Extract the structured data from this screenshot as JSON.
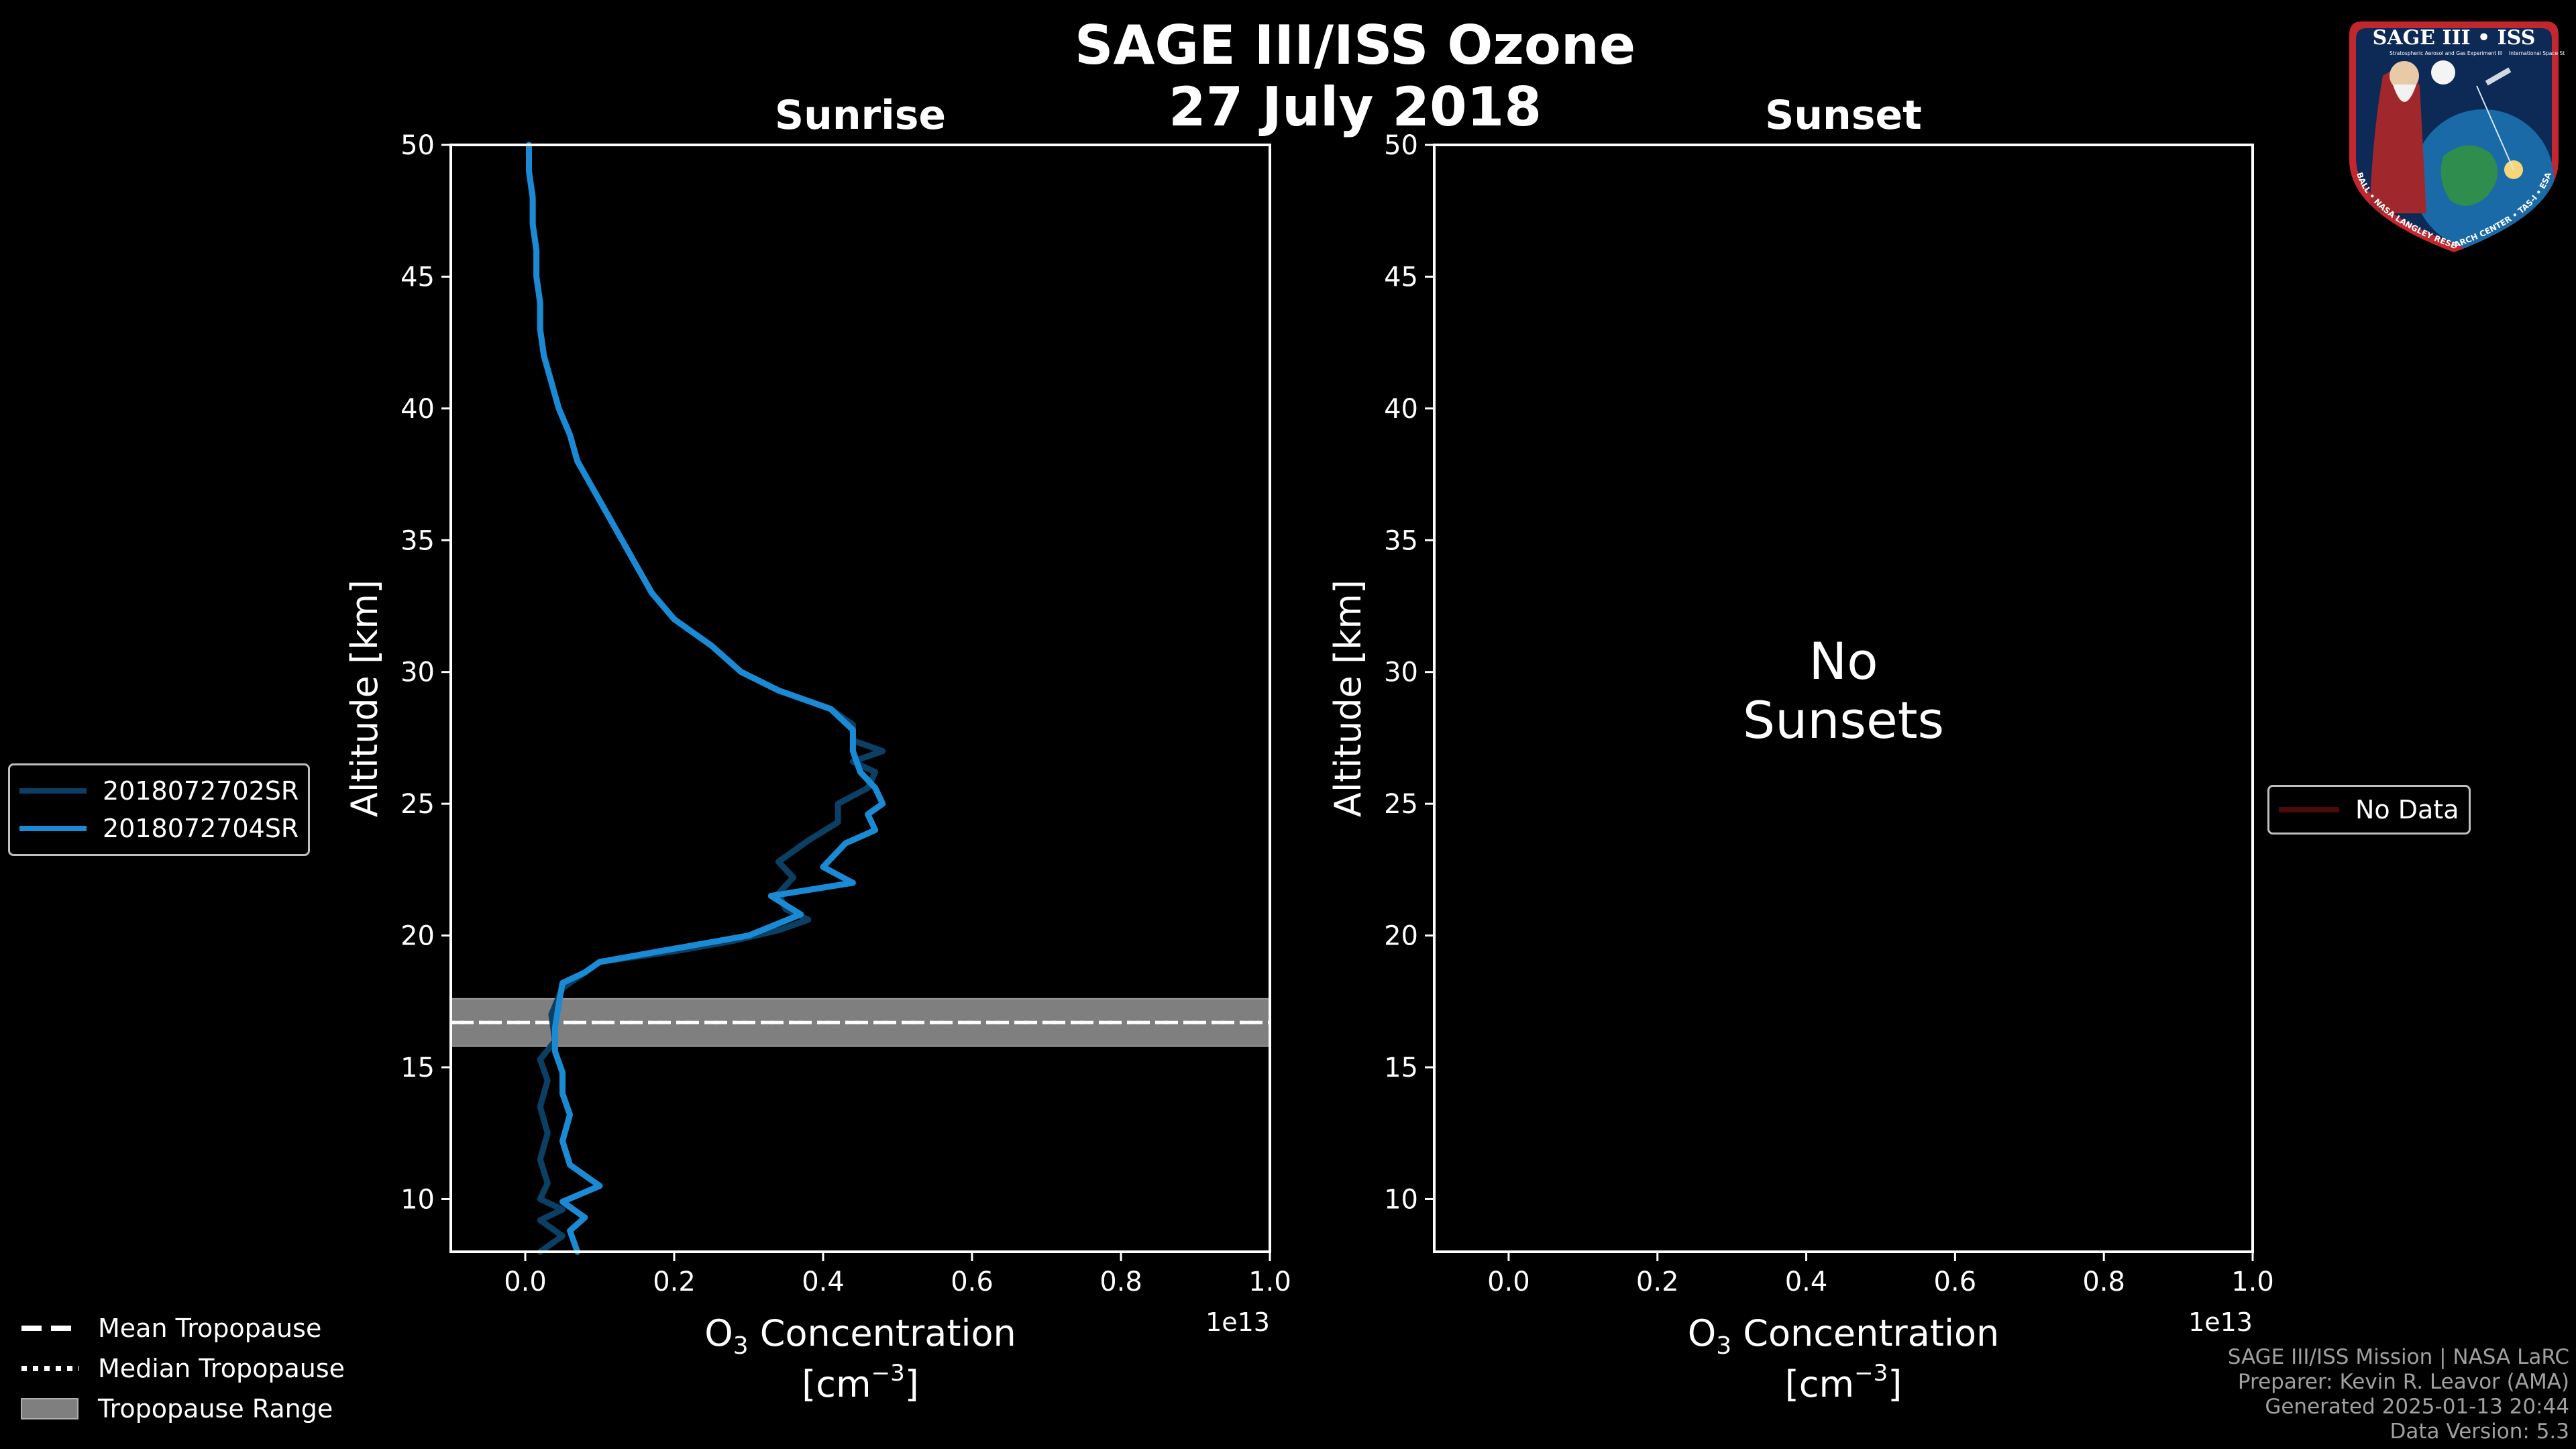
{
  "header": {
    "title_line1": "SAGE III/ISS Ozone",
    "title_line2": "27 July 2018"
  },
  "chart_data": [
    {
      "type": "line",
      "title": "Sunrise",
      "xlabel": "O3 Concentration [cm^-3]",
      "xlabel_main": "O",
      "xlabel_sub": "3",
      "xlabel_rest": " Concentration",
      "xlabel_unit_open": "[cm",
      "xlabel_unit_exp": "−3",
      "xlabel_unit_close": "]",
      "ylabel": "Altitude [km]",
      "x_scale_label": "1e13",
      "xlim": [
        -0.1,
        1.0
      ],
      "ylim": [
        8,
        50
      ],
      "xticks": [
        "0.0",
        "0.2",
        "0.4",
        "0.6",
        "0.8",
        "1.0"
      ],
      "xtick_values": [
        0.0,
        0.2,
        0.4,
        0.6,
        0.8,
        1.0
      ],
      "yticks": [
        "10",
        "15",
        "20",
        "25",
        "30",
        "35",
        "40",
        "45",
        "50"
      ],
      "ytick_values": [
        10,
        15,
        20,
        25,
        30,
        35,
        40,
        45,
        50
      ],
      "tropopause": {
        "mean": 16.7,
        "median": 16.7,
        "min": 15.8,
        "max": 17.6
      },
      "series": [
        {
          "name": "2018072702SR",
          "color": "#0b3f64",
          "points": [
            [
              0.02,
              8.0
            ],
            [
              0.05,
              8.6
            ],
            [
              0.02,
              9.2
            ],
            [
              0.05,
              9.6
            ],
            [
              0.02,
              10.0
            ],
            [
              0.03,
              10.6
            ],
            [
              0.02,
              11.5
            ],
            [
              0.03,
              12.5
            ],
            [
              0.02,
              13.5
            ],
            [
              0.03,
              14.5
            ],
            [
              0.02,
              15.3
            ],
            [
              0.04,
              16.0
            ],
            [
              0.035,
              17.0
            ],
            [
              0.05,
              18.0
            ],
            [
              0.1,
              19.0
            ],
            [
              0.2,
              19.4
            ],
            [
              0.28,
              19.8
            ],
            [
              0.34,
              20.2
            ],
            [
              0.38,
              20.6
            ],
            [
              0.35,
              21.0
            ],
            [
              0.34,
              21.6
            ],
            [
              0.36,
              22.2
            ],
            [
              0.34,
              22.8
            ],
            [
              0.38,
              23.6
            ],
            [
              0.42,
              24.3
            ],
            [
              0.42,
              25.0
            ],
            [
              0.46,
              25.6
            ],
            [
              0.47,
              26.2
            ],
            [
              0.44,
              26.6
            ],
            [
              0.48,
              27.0
            ],
            [
              0.44,
              27.4
            ],
            [
              0.44,
              28.0
            ],
            [
              0.41,
              28.6
            ],
            [
              0.34,
              29.3
            ],
            [
              0.29,
              30.0
            ],
            [
              0.25,
              31.0
            ],
            [
              0.2,
              32.0
            ],
            [
              0.17,
              33.0
            ],
            [
              0.15,
              34.0
            ],
            [
              0.13,
              35.0
            ],
            [
              0.11,
              36.0
            ],
            [
              0.09,
              37.0
            ],
            [
              0.07,
              38.0
            ],
            [
              0.06,
              39.0
            ],
            [
              0.045,
              40.0
            ],
            [
              0.035,
              41.0
            ],
            [
              0.025,
              42.0
            ],
            [
              0.02,
              43.0
            ],
            [
              0.02,
              44.0
            ],
            [
              0.015,
              45.0
            ],
            [
              0.015,
              46.0
            ],
            [
              0.01,
              47.0
            ],
            [
              0.01,
              48.0
            ],
            [
              0.005,
              49.0
            ],
            [
              0.005,
              50.0
            ]
          ]
        },
        {
          "name": "2018072704SR",
          "color": "#1a8ad4",
          "points": [
            [
              0.07,
              8.0
            ],
            [
              0.06,
              8.8
            ],
            [
              0.08,
              9.3
            ],
            [
              0.05,
              9.9
            ],
            [
              0.1,
              10.5
            ],
            [
              0.06,
              11.3
            ],
            [
              0.05,
              12.2
            ],
            [
              0.06,
              13.2
            ],
            [
              0.05,
              14.0
            ],
            [
              0.05,
              14.8
            ],
            [
              0.04,
              15.6
            ],
            [
              0.04,
              16.5
            ],
            [
              0.045,
              17.4
            ],
            [
              0.05,
              18.2
            ],
            [
              0.08,
              18.6
            ],
            [
              0.1,
              19.0
            ],
            [
              0.2,
              19.5
            ],
            [
              0.3,
              20.0
            ],
            [
              0.37,
              20.8
            ],
            [
              0.33,
              21.5
            ],
            [
              0.44,
              22.0
            ],
            [
              0.4,
              22.6
            ],
            [
              0.43,
              23.5
            ],
            [
              0.47,
              24.0
            ],
            [
              0.46,
              24.6
            ],
            [
              0.48,
              25.0
            ],
            [
              0.47,
              25.6
            ],
            [
              0.45,
              26.2
            ],
            [
              0.44,
              27.0
            ],
            [
              0.44,
              27.8
            ],
            [
              0.41,
              28.6
            ],
            [
              0.34,
              29.3
            ],
            [
              0.29,
              30.0
            ],
            [
              0.25,
              31.0
            ],
            [
              0.2,
              32.0
            ],
            [
              0.17,
              33.0
            ],
            [
              0.15,
              34.0
            ],
            [
              0.13,
              35.0
            ],
            [
              0.11,
              36.0
            ],
            [
              0.09,
              37.0
            ],
            [
              0.07,
              38.0
            ],
            [
              0.06,
              39.0
            ],
            [
              0.045,
              40.0
            ],
            [
              0.035,
              41.0
            ],
            [
              0.025,
              42.0
            ],
            [
              0.02,
              43.0
            ],
            [
              0.02,
              44.0
            ],
            [
              0.015,
              45.0
            ],
            [
              0.015,
              46.0
            ],
            [
              0.01,
              47.0
            ],
            [
              0.01,
              48.0
            ],
            [
              0.005,
              49.0
            ],
            [
              0.005,
              50.0
            ]
          ]
        }
      ]
    },
    {
      "type": "line",
      "title": "Sunset",
      "xlabel": "O3 Concentration [cm^-3]",
      "xlabel_main": "O",
      "xlabel_sub": "3",
      "xlabel_rest": " Concentration",
      "xlabel_unit_open": "[cm",
      "xlabel_unit_exp": "−3",
      "xlabel_unit_close": "]",
      "ylabel": "Altitude [km]",
      "x_scale_label": "1e13",
      "xlim": [
        -0.1,
        1.0
      ],
      "ylim": [
        8,
        50
      ],
      "xticks": [
        "0.0",
        "0.2",
        "0.4",
        "0.6",
        "0.8",
        "1.0"
      ],
      "xtick_values": [
        0.0,
        0.2,
        0.4,
        0.6,
        0.8,
        1.0
      ],
      "yticks": [
        "10",
        "15",
        "20",
        "25",
        "30",
        "35",
        "40",
        "45",
        "50"
      ],
      "ytick_values": [
        10,
        15,
        20,
        25,
        30,
        35,
        40,
        45,
        50
      ],
      "annotation_line1": "No",
      "annotation_line2": "Sunsets",
      "series": []
    }
  ],
  "legends": {
    "sunrise": [
      {
        "label": "2018072702SR",
        "color": "#0b3f64"
      },
      {
        "label": "2018072704SR",
        "color": "#1a8ad4"
      }
    ],
    "sunset": [
      {
        "label": "No Data",
        "color": "#4a0a0a"
      }
    ],
    "tropopause": [
      {
        "label": "Mean Tropopause",
        "style": "dashed"
      },
      {
        "label": "Median Tropopause",
        "style": "dotted"
      },
      {
        "label": "Tropopause Range",
        "style": "band",
        "color": "#7f7f7f"
      }
    ]
  },
  "credits": {
    "line1": "SAGE III/ISS Mission | NASA LaRC",
    "line2": "Preparer: Kevin R. Leavor (AMA)",
    "line3": "Generated 2025-01-13 20:44",
    "line4": "Data Version: 5.3"
  },
  "badge": {
    "title": "SAGE III • ISS",
    "subtitle_left": "Stratospheric Aerosol and Gas Experiment III",
    "subtitle_right": "International Space Station",
    "ring_text": "BALL • NASA LANGLEY RESEARCH CENTER • TAS-I • ESA"
  }
}
